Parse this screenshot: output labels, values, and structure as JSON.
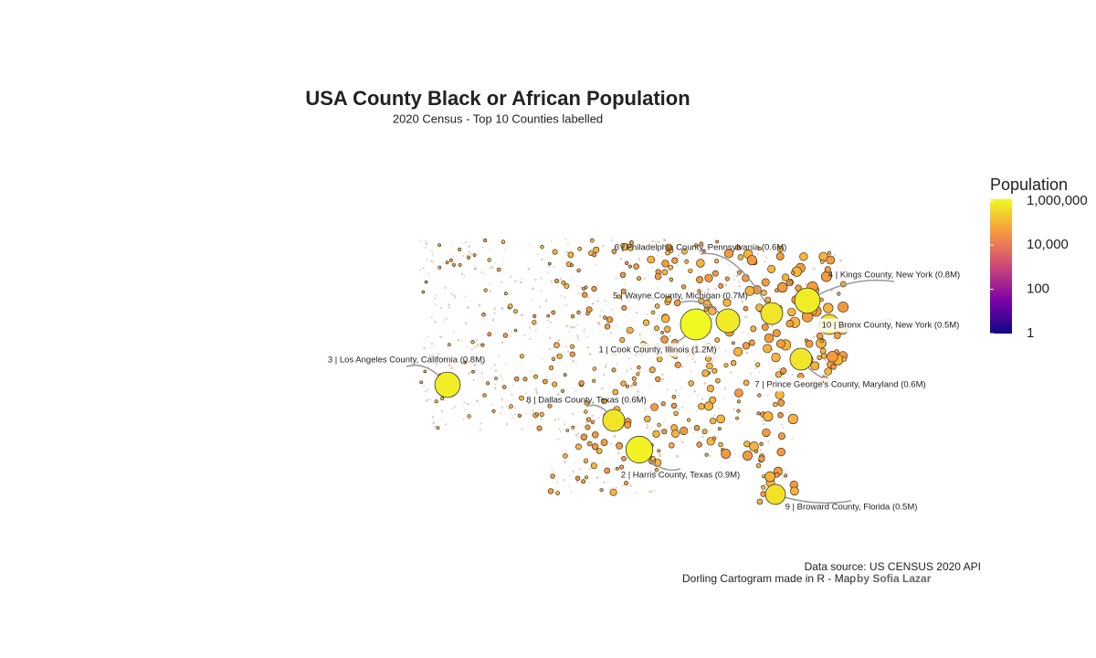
{
  "chart_data": {
    "type": "dorling-map",
    "title": "USA County Black or African Population",
    "subtitle": "2020 Census - Top 10 Counties labelled",
    "counties": [
      {
        "label": "1 | Cook County, Illinois (1.2M)",
        "value": 1200000
      },
      {
        "label": "2 | Harris County, Texas (0.9M)",
        "value": 900000
      },
      {
        "label": "3 | Los Angeles County, California (0.8M)",
        "value": 800000
      },
      {
        "label": "4 | Kings County, New York (0.8M)",
        "value": 800000
      },
      {
        "label": "5 | Wayne County, Michigan (0.7M)",
        "value": 700000
      },
      {
        "label": "6 | Philadelphia County, Pennsylvania (0.6M)",
        "value": 600000
      },
      {
        "label": "7 | Prince George's County, Maryland (0.6M)",
        "value": 600000
      },
      {
        "label": "8 | Dallas County, Texas (0.6M)",
        "value": 600000
      },
      {
        "label": "9 | Broward County, Florida (0.5M)",
        "value": 500000
      },
      {
        "label": "10 | Bronx County, New York (0.5M)",
        "value": 500000
      }
    ],
    "legend": {
      "title": "Population",
      "log_scale": true,
      "lim": [
        1,
        1200000
      ],
      "ticks": [
        {
          "value": 1000000,
          "label": "1,000,000"
        },
        {
          "value": 10000,
          "label": "10,000"
        },
        100,
        1
      ]
    },
    "source": "Data source: US CENSUS 2020 API",
    "credit": "Dorling Cartogram made in R - Map",
    "author": "by Sofia Lazar"
  }
}
